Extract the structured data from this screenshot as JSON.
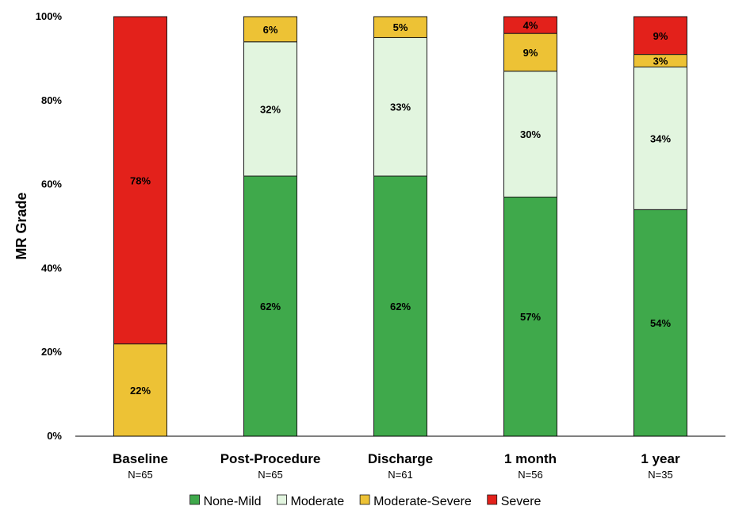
{
  "chart_data": {
    "type": "bar",
    "stacked": true,
    "ylabel": "MR Grade",
    "ylim": [
      0,
      100
    ],
    "yticks": [
      "0%",
      "20%",
      "40%",
      "60%",
      "80%",
      "100%"
    ],
    "categories": [
      "Baseline",
      "Post-Procedure",
      "Discharge",
      "1 month",
      "1 year"
    ],
    "sample_sizes": [
      "N=65",
      "N=65",
      "N=61",
      "N=56",
      "N=35"
    ],
    "series": [
      {
        "name": "None-Mild",
        "color": "#3fa94b",
        "values": [
          0,
          62,
          62,
          57,
          54
        ],
        "labels": [
          "",
          "62%",
          "62%",
          "57%",
          "54%"
        ]
      },
      {
        "name": "Moderate",
        "color": "#e2f5df",
        "values": [
          0,
          32,
          33,
          30,
          34
        ],
        "labels": [
          "",
          "32%",
          "33%",
          "30%",
          "34%"
        ]
      },
      {
        "name": "Moderate-Severe",
        "color": "#edc235",
        "values": [
          22,
          6,
          5,
          9,
          3
        ],
        "labels": [
          "22%",
          "6%",
          "5%",
          "9%",
          "3%"
        ]
      },
      {
        "name": "Severe",
        "color": "#e3211b",
        "values": [
          78,
          0,
          0,
          4,
          9
        ],
        "labels": [
          "78%",
          "",
          "",
          "4%",
          "9%"
        ]
      }
    ],
    "legend_position": "bottom",
    "grid": false
  }
}
